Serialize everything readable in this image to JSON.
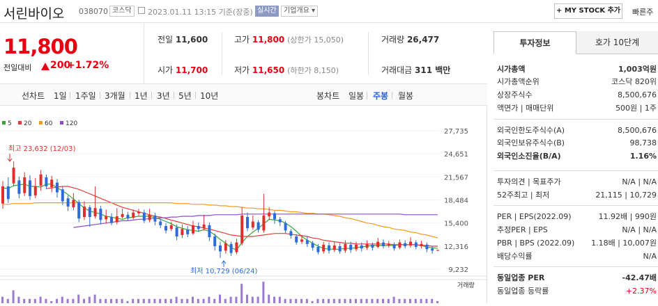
{
  "header": {
    "name": "서린바이오",
    "code": "038070",
    "market": "코스닥",
    "datetime": "2023.01.11 13:15 기준(장중)",
    "live": "실시간",
    "company_info": "기업개요 ▾",
    "mystock_button": "+ MY STOCK 추가",
    "quick_search": "빠른주"
  },
  "price": {
    "current": "11,800",
    "change_label": "전일대비",
    "change": "200",
    "change_pct": "+1.72%"
  },
  "stats": [
    {
      "label": "전일",
      "value": "11,600"
    },
    {
      "label": "고가",
      "value": "11,800",
      "extra": "(상한가 15,050)"
    },
    {
      "label": "거래량",
      "value": "26,477"
    },
    {
      "label": "시가",
      "value": "11,700"
    },
    {
      "label": "저가",
      "value": "11,650",
      "extra": "(하한가 8,150)"
    },
    {
      "label": "거래대금",
      "value": "311 백만"
    }
  ],
  "periods": {
    "line_label": "선차트",
    "line": [
      "1일",
      "1주일",
      "3개월",
      "1년",
      "3년",
      "5년",
      "10년"
    ],
    "candle_label": "봉차트",
    "candle": [
      "일봉",
      "주봉",
      "월봉"
    ],
    "candle_active": "주봉"
  },
  "chart_data": {
    "type": "candlestick",
    "ma_legend": [
      {
        "name": "5",
        "color": "#31a82f"
      },
      {
        "name": "20",
        "color": "#e63b3b"
      },
      {
        "name": "60",
        "color": "#f39a1e"
      },
      {
        "name": "120",
        "color": "#8e4bc8"
      }
    ],
    "y_ticks": [
      27735,
      24651,
      21567,
      18484,
      15400,
      12316,
      9232
    ],
    "ylim": [
      9232,
      27735
    ],
    "high_label": "최고 23,632 (12/03)",
    "low_label": "최저 10,729 (06/24)",
    "volume_label": "거래량",
    "candles": [
      {
        "o": 18000,
        "c": 20300,
        "h": 21000,
        "l": 17300
      },
      {
        "o": 20300,
        "c": 18600,
        "h": 21500,
        "l": 18100
      },
      {
        "o": 20700,
        "c": 22800,
        "h": 23632,
        "l": 20300
      },
      {
        "o": 21100,
        "c": 19300,
        "h": 21600,
        "l": 18700
      },
      {
        "o": 19400,
        "c": 21500,
        "h": 22200,
        "l": 19000
      },
      {
        "o": 21100,
        "c": 19000,
        "h": 21800,
        "l": 18500
      },
      {
        "o": 19100,
        "c": 20300,
        "h": 21400,
        "l": 18700
      },
      {
        "o": 20400,
        "c": 21900,
        "h": 22500,
        "l": 19700
      },
      {
        "o": 21500,
        "c": 20300,
        "h": 21900,
        "l": 19900
      },
      {
        "o": 20200,
        "c": 21200,
        "h": 21700,
        "l": 19500
      },
      {
        "o": 20800,
        "c": 19500,
        "h": 21300,
        "l": 18800
      },
      {
        "o": 19900,
        "c": 18300,
        "h": 20300,
        "l": 17800
      },
      {
        "o": 18700,
        "c": 17600,
        "h": 19100,
        "l": 17000
      },
      {
        "o": 17500,
        "c": 18500,
        "h": 19400,
        "l": 17100
      },
      {
        "o": 18200,
        "c": 16000,
        "h": 18500,
        "l": 15500
      },
      {
        "o": 16200,
        "c": 17600,
        "h": 18300,
        "l": 15800
      },
      {
        "o": 17500,
        "c": 16200,
        "h": 17800,
        "l": 14900
      },
      {
        "o": 16300,
        "c": 17400,
        "h": 20300,
        "l": 16000
      },
      {
        "o": 17300,
        "c": 15800,
        "h": 17700,
        "l": 15200
      },
      {
        "o": 15900,
        "c": 16300,
        "h": 17200,
        "l": 15300
      },
      {
        "o": 16200,
        "c": 15400,
        "h": 16700,
        "l": 15100
      },
      {
        "o": 15500,
        "c": 16300,
        "h": 17400,
        "l": 15200
      },
      {
        "o": 16200,
        "c": 16600,
        "h": 17300,
        "l": 16000
      },
      {
        "o": 16500,
        "c": 16000,
        "h": 16900,
        "l": 15700
      },
      {
        "o": 16100,
        "c": 16800,
        "h": 17200,
        "l": 15900
      },
      {
        "o": 16700,
        "c": 16900,
        "h": 17300,
        "l": 16300
      },
      {
        "o": 16800,
        "c": 15700,
        "h": 17200,
        "l": 15400
      },
      {
        "o": 15800,
        "c": 16500,
        "h": 17300,
        "l": 15500
      },
      {
        "o": 16400,
        "c": 15600,
        "h": 16800,
        "l": 15100
      },
      {
        "o": 15600,
        "c": 15100,
        "h": 16000,
        "l": 14700
      },
      {
        "o": 15000,
        "c": 14400,
        "h": 15400,
        "l": 14000
      },
      {
        "o": 14600,
        "c": 15100,
        "h": 15600,
        "l": 14300
      },
      {
        "o": 14800,
        "c": 13600,
        "h": 15200,
        "l": 13100
      },
      {
        "o": 13800,
        "c": 14600,
        "h": 15200,
        "l": 13400
      },
      {
        "o": 14500,
        "c": 13900,
        "h": 15000,
        "l": 13500
      },
      {
        "o": 14000,
        "c": 15100,
        "h": 15700,
        "l": 13800
      },
      {
        "o": 15000,
        "c": 14600,
        "h": 15500,
        "l": 14200
      },
      {
        "o": 14700,
        "c": 15200,
        "h": 16500,
        "l": 14400
      },
      {
        "o": 15100,
        "c": 13500,
        "h": 15500,
        "l": 13000
      },
      {
        "o": 13600,
        "c": 12300,
        "h": 14000,
        "l": 11700
      },
      {
        "o": 12400,
        "c": 11600,
        "h": 12900,
        "l": 10729
      },
      {
        "o": 11700,
        "c": 12700,
        "h": 13100,
        "l": 11300
      },
      {
        "o": 12600,
        "c": 11400,
        "h": 12900,
        "l": 11000
      },
      {
        "o": 11500,
        "c": 12800,
        "h": 13300,
        "l": 11200
      },
      {
        "o": 12700,
        "c": 16400,
        "h": 17500,
        "l": 12400
      },
      {
        "o": 16200,
        "c": 14700,
        "h": 16800,
        "l": 14300
      },
      {
        "o": 14800,
        "c": 15600,
        "h": 16400,
        "l": 14500
      },
      {
        "o": 15500,
        "c": 14500,
        "h": 15800,
        "l": 14100
      },
      {
        "o": 14400,
        "c": 16400,
        "h": 19300,
        "l": 14100
      },
      {
        "o": 16300,
        "c": 16800,
        "h": 17500,
        "l": 15800
      },
      {
        "o": 16700,
        "c": 15900,
        "h": 17000,
        "l": 15300
      },
      {
        "o": 15900,
        "c": 15500,
        "h": 16200,
        "l": 15000
      },
      {
        "o": 15400,
        "c": 14400,
        "h": 15700,
        "l": 14000
      },
      {
        "o": 14300,
        "c": 13700,
        "h": 14600,
        "l": 13300
      },
      {
        "o": 13600,
        "c": 12800,
        "h": 13900,
        "l": 12500
      },
      {
        "o": 12900,
        "c": 13200,
        "h": 13800,
        "l": 12600
      },
      {
        "o": 13100,
        "c": 12600,
        "h": 13600,
        "l": 12200
      },
      {
        "o": 12700,
        "c": 12100,
        "h": 13000,
        "l": 11700
      },
      {
        "o": 12200,
        "c": 11500,
        "h": 12600,
        "l": 11200
      },
      {
        "o": 11600,
        "c": 12500,
        "h": 12900,
        "l": 11300
      },
      {
        "o": 12400,
        "c": 11700,
        "h": 12800,
        "l": 11300
      },
      {
        "o": 11800,
        "c": 12400,
        "h": 12900,
        "l": 11500
      },
      {
        "o": 12300,
        "c": 11600,
        "h": 12700,
        "l": 11300
      },
      {
        "o": 11700,
        "c": 12600,
        "h": 13100,
        "l": 11400
      },
      {
        "o": 12500,
        "c": 11800,
        "h": 12900,
        "l": 11400
      },
      {
        "o": 11900,
        "c": 12500,
        "h": 12900,
        "l": 11600
      },
      {
        "o": 12400,
        "c": 12000,
        "h": 12800,
        "l": 11600
      },
      {
        "o": 12100,
        "c": 12600,
        "h": 13100,
        "l": 11800
      },
      {
        "o": 12500,
        "c": 12100,
        "h": 12800,
        "l": 11700
      },
      {
        "o": 12200,
        "c": 12900,
        "h": 13400,
        "l": 12000
      },
      {
        "o": 12800,
        "c": 12300,
        "h": 13200,
        "l": 12000
      },
      {
        "o": 12400,
        "c": 12600,
        "h": 13000,
        "l": 12100
      },
      {
        "o": 12500,
        "c": 12000,
        "h": 12800,
        "l": 11700
      },
      {
        "o": 12100,
        "c": 12800,
        "h": 13200,
        "l": 11900
      },
      {
        "o": 12700,
        "c": 12300,
        "h": 13100,
        "l": 12000
      },
      {
        "o": 12400,
        "c": 12900,
        "h": 13500,
        "l": 12100
      },
      {
        "o": 12800,
        "c": 12200,
        "h": 13100,
        "l": 11900
      },
      {
        "o": 12300,
        "c": 12600,
        "h": 13000,
        "l": 12000
      },
      {
        "o": 12500,
        "c": 11900,
        "h": 12800,
        "l": 11500
      },
      {
        "o": 12000,
        "c": 11700,
        "h": 12300,
        "l": 11300
      },
      {
        "o": 11700,
        "c": 11800,
        "h": 11800,
        "l": 11650
      }
    ],
    "ma": {
      "5": [
        20100,
        20000,
        20400,
        20500,
        20600,
        20300,
        20300,
        20200,
        20600,
        20600,
        20100,
        19700,
        19200,
        18600,
        18000,
        17400,
        17000,
        16800,
        16600,
        16300,
        16200,
        16000,
        15900,
        16100,
        16200,
        16300,
        16300,
        16300,
        16100,
        15900,
        15600,
        15300,
        14900,
        14700,
        14500,
        14400,
        14300,
        14500,
        14300,
        13800,
        13200,
        12700,
        12100,
        11800,
        12800,
        13600,
        14200,
        14700,
        15300,
        15900,
        15800,
        15700,
        15400,
        14900,
        14300,
        13600,
        13100,
        12700,
        12300,
        12000,
        11900,
        11900,
        11900,
        12000,
        12000,
        12100,
        12200,
        12300,
        12400,
        12400,
        12400,
        12400,
        12400,
        12500,
        12500,
        12500,
        12500,
        12400,
        12200,
        12100,
        12000
      ],
      "20": [
        null,
        null,
        null,
        null,
        null,
        null,
        null,
        null,
        20000,
        20100,
        20200,
        20300,
        20300,
        20100,
        19900,
        19600,
        19300,
        19000,
        18700,
        18400,
        18100,
        17800,
        17500,
        17300,
        17100,
        16900,
        16700,
        16500,
        16300,
        16200,
        16000,
        15800,
        15600,
        15400,
        15200,
        15000,
        14900,
        14700,
        14600,
        14400,
        14200,
        14000,
        13800,
        13700,
        13600,
        13600,
        13600,
        13700,
        13800,
        13900,
        14000,
        14000,
        14000,
        13900,
        13800,
        13700,
        13600,
        13400,
        13300,
        13100,
        13000,
        12900,
        12800,
        12700,
        12700,
        12600,
        12600,
        12600,
        12600,
        12600,
        12600,
        12600,
        12500,
        12500,
        12500,
        12500,
        12500,
        12400,
        12400,
        12300,
        12300
      ],
      "60": [
        17900,
        17900,
        18000,
        18000,
        18000,
        18000,
        18100,
        18100,
        18100,
        18100,
        18100,
        18100,
        18100,
        18100,
        18100,
        18100,
        18100,
        18100,
        18100,
        18100,
        18100,
        18100,
        18100,
        18100,
        18100,
        18100,
        18100,
        18100,
        18100,
        18100,
        18100,
        18100,
        18000,
        18000,
        18000,
        17900,
        17900,
        17900,
        17800,
        17800,
        17700,
        17700,
        17600,
        17600,
        17500,
        17400,
        17400,
        17300,
        17300,
        17200,
        17100,
        17100,
        17000,
        16900,
        16900,
        16800,
        16700,
        16700,
        16600,
        16600,
        16500,
        16400,
        16300,
        16100,
        16000,
        15800,
        15600,
        15400,
        15300,
        15100,
        14900,
        14800,
        14600,
        14500,
        14400,
        14200,
        14100,
        13900,
        13800,
        13600,
        13400
      ],
      "120": [
        null,
        null,
        null,
        null,
        null,
        null,
        null,
        null,
        null,
        null,
        null,
        null,
        null,
        14800,
        14900,
        15000,
        15100,
        15200,
        15300,
        15400,
        15500,
        15600,
        15700,
        15700,
        15800,
        15900,
        15900,
        16000,
        16000,
        16100,
        16100,
        16200,
        16200,
        16300,
        16300,
        16300,
        16400,
        16400,
        16400,
        16500,
        16500,
        16500,
        16500,
        16500,
        16600,
        16600,
        16600,
        16600,
        16600,
        16600,
        16600,
        16600,
        16600,
        16600,
        16600,
        16600,
        16600,
        16600,
        16600,
        16600,
        16600,
        16600,
        16600,
        16600,
        16600,
        16600,
        16600,
        16600,
        16600,
        16600,
        16600,
        16600,
        16600,
        16600,
        16500,
        16500,
        16500,
        16500,
        16500,
        16500,
        16500
      ]
    },
    "volume": [
      3,
      2,
      6,
      3,
      2,
      2,
      2,
      3,
      2,
      1,
      2,
      3,
      2,
      2,
      4,
      2,
      3,
      4,
      2,
      2,
      2,
      2,
      2,
      1,
      2,
      2,
      2,
      2,
      2,
      2,
      2,
      2,
      3,
      2,
      2,
      3,
      2,
      2,
      3,
      2,
      4,
      2,
      3,
      3,
      9,
      4,
      3,
      3,
      10,
      4,
      3,
      3,
      2,
      2,
      2,
      2,
      2,
      1,
      2,
      2,
      2,
      2,
      2,
      2,
      2,
      2,
      2,
      2,
      2,
      2,
      2,
      2,
      3,
      2,
      2,
      2,
      2,
      2,
      2,
      2,
      1
    ]
  },
  "invest_tabs": [
    "투자정보",
    "호가 10단계"
  ],
  "invest": [
    {
      "label": "시가총액",
      "value": "1,003억원",
      "bold": true
    },
    {
      "label": "시가총액순위",
      "value": "코스닥 820위"
    },
    {
      "label": "상장주식수",
      "value": "8,500,676"
    },
    {
      "label": "액면가 | 매매단위",
      "value": "500원 | 1주"
    },
    {
      "label": "외국인한도주식수(A)",
      "value": "8,500,676"
    },
    {
      "label": "외국인보유주식수(B)",
      "value": "98,738"
    },
    {
      "label": "외국인소진율(B/A)",
      "value": "1.16%",
      "bold": true
    },
    {
      "label": "투자의견 | 목표주가",
      "value": "N/A | N/A"
    },
    {
      "label": "52주최고 | 최저",
      "value": "21,115 | 10,729"
    },
    {
      "label": "PER | EPS(2022.09)",
      "value": "11.92배 | 990원"
    },
    {
      "label": "추정PER | EPS",
      "value": "N/A | N/A"
    },
    {
      "label": "PBR | BPS (2022.09)",
      "value": "1.18배 | 10,007원"
    },
    {
      "label": "배당수익률",
      "value": "N/A"
    },
    {
      "label": "동일업종 PER",
      "value": "-42.47배",
      "bold": true
    },
    {
      "label": "동일업종 등락률",
      "value": "+2.37%",
      "red": true
    }
  ]
}
